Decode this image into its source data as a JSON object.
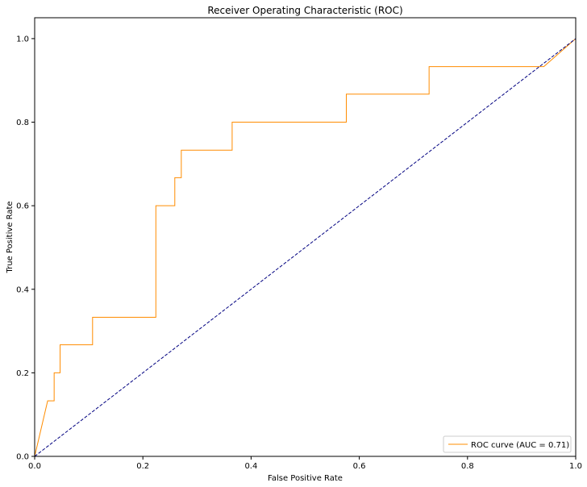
{
  "chart_data": {
    "type": "line",
    "title": "Receiver Operating Characteristic (ROC)",
    "xlabel": "False Positive Rate",
    "ylabel": "True Positive Rate",
    "xlim": [
      0.0,
      1.0
    ],
    "ylim": [
      0.0,
      1.05
    ],
    "x_ticks": [
      "0.0",
      "0.2",
      "0.4",
      "0.6",
      "0.8",
      "1.0"
    ],
    "y_ticks": [
      "0.0",
      "0.2",
      "0.4",
      "0.6",
      "0.8",
      "1.0"
    ],
    "grid": false,
    "legend_position": "lower-right",
    "series": [
      {
        "name": "ROC curve (AUC = 0.71)",
        "color": "#ff8c00",
        "style": "solid",
        "x": [
          0.0,
          0.024,
          0.024,
          0.036,
          0.036,
          0.047,
          0.047,
          0.107,
          0.107,
          0.224,
          0.224,
          0.259,
          0.259,
          0.271,
          0.271,
          0.365,
          0.365,
          0.576,
          0.576,
          0.729,
          0.729,
          0.941,
          1.0
        ],
        "y": [
          0.0,
          0.133,
          0.133,
          0.133,
          0.2,
          0.2,
          0.267,
          0.267,
          0.333,
          0.333,
          0.6,
          0.6,
          0.667,
          0.667,
          0.733,
          0.733,
          0.8,
          0.8,
          0.867,
          0.867,
          0.933,
          0.933,
          1.0
        ]
      },
      {
        "color": "#000080",
        "style": "dashed",
        "x": [
          0.0,
          1.0
        ],
        "y": [
          0.0,
          1.0
        ]
      }
    ]
  }
}
